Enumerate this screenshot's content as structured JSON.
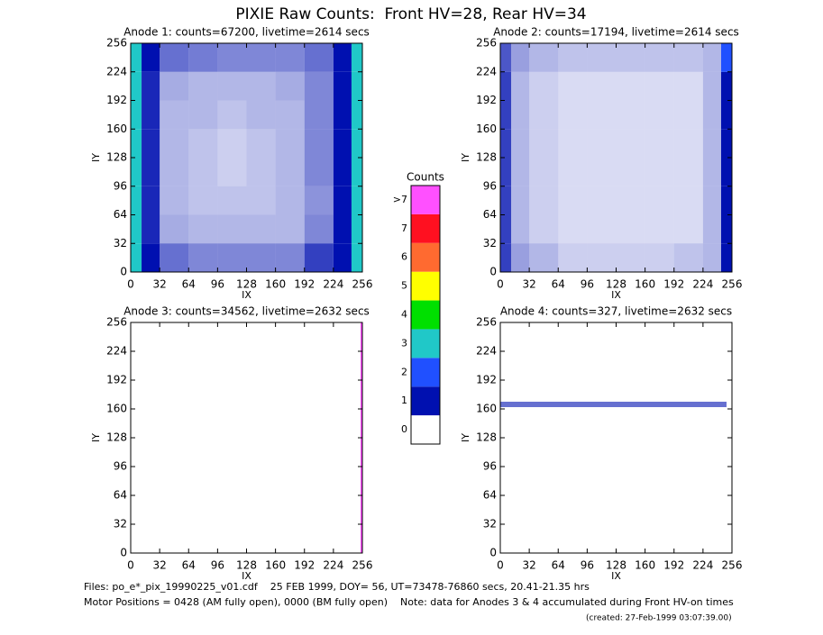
{
  "title": "PIXIE Raw Counts:  Front HV=28, Rear HV=34",
  "colorbar": {
    "title": "Counts",
    "colors": [
      "#ffffff",
      "#0010b0",
      "#2050ff",
      "#20c8c8",
      "#00e000",
      "#ffff00",
      "#ff6a30",
      "#ff1020",
      "#ff50ff"
    ],
    "ticks": [
      0,
      1,
      2,
      3,
      4,
      5,
      6,
      7,
      {
        "value": 8,
        "label": ">7"
      }
    ]
  },
  "footer": [
    "Files: po_e*_pix_19990225_v01.cdf    25 FEB 1999, DOY= 56, UT=73478-76860 secs, 20.41-21.35 hrs",
    "Motor Positions = 0428 (AM fully open), 0000 (BM fully open)    Note: data for Anodes 3 & 4 accumulated during Front HV-on times",
    "(created: 27-Feb-1999 03:07:39.00)"
  ],
  "chart_data": [
    {
      "type": "heatmap",
      "title": "Anode 1: counts=67200, livetime=2614 secs",
      "xlabel": "IX",
      "ylabel": "IY",
      "xlim": [
        0,
        256
      ],
      "ylim": [
        0,
        256
      ],
      "xticks": [
        0,
        32,
        64,
        96,
        128,
        160,
        192,
        224,
        256
      ],
      "yticks": [
        0,
        32,
        64,
        96,
        128,
        160,
        192,
        224,
        256
      ],
      "x_edges": [
        0,
        12,
        32,
        64,
        96,
        128,
        160,
        192,
        224,
        244,
        256
      ],
      "y_edges": [
        0,
        32,
        64,
        96,
        128,
        160,
        192,
        224,
        256
      ],
      "z": [
        [
          3,
          1,
          0.6,
          0.5,
          0.5,
          0.5,
          0.5,
          0.8,
          1.2,
          3
        ],
        [
          3,
          0.9,
          0.35,
          0.3,
          0.3,
          0.3,
          0.3,
          0.5,
          1.2,
          3
        ],
        [
          3,
          0.9,
          0.3,
          0.25,
          0.25,
          0.25,
          0.3,
          0.45,
          1.2,
          3
        ],
        [
          3,
          0.9,
          0.3,
          0.25,
          0.2,
          0.25,
          0.3,
          0.5,
          1.3,
          3
        ],
        [
          3,
          0.9,
          0.3,
          0.25,
          0.2,
          0.25,
          0.3,
          0.5,
          1.3,
          3
        ],
        [
          3,
          0.9,
          0.3,
          0.3,
          0.25,
          0.3,
          0.3,
          0.5,
          1.2,
          3
        ],
        [
          3,
          0.9,
          0.35,
          0.3,
          0.3,
          0.3,
          0.35,
          0.5,
          1.1,
          3
        ],
        [
          3,
          1,
          0.6,
          0.55,
          0.5,
          0.5,
          0.5,
          0.6,
          1,
          3
        ]
      ]
    },
    {
      "type": "heatmap",
      "title": "Anode 2: counts=17194, livetime=2614 secs",
      "xlabel": "IX",
      "ylabel": "IY",
      "xlim": [
        0,
        256
      ],
      "ylim": [
        0,
        256
      ],
      "xticks": [
        0,
        32,
        64,
        96,
        128,
        160,
        192,
        224,
        256
      ],
      "yticks": [
        0,
        32,
        64,
        96,
        128,
        160,
        192,
        224,
        256
      ],
      "x_edges": [
        0,
        12,
        32,
        64,
        96,
        128,
        160,
        192,
        224,
        244,
        256
      ],
      "y_edges": [
        0,
        32,
        64,
        96,
        128,
        160,
        192,
        224,
        256
      ],
      "z": [
        [
          0.8,
          0.4,
          0.3,
          0.2,
          0.2,
          0.2,
          0.2,
          0.25,
          0.3,
          1.5
        ],
        [
          0.8,
          0.3,
          0.2,
          0.15,
          0.15,
          0.15,
          0.15,
          0.15,
          0.3,
          1.5
        ],
        [
          0.8,
          0.3,
          0.2,
          0.15,
          0.15,
          0.15,
          0.15,
          0.15,
          0.3,
          1.5
        ],
        [
          0.8,
          0.3,
          0.2,
          0.15,
          0.15,
          0.15,
          0.15,
          0.15,
          0.3,
          1.5
        ],
        [
          0.8,
          0.3,
          0.2,
          0.15,
          0.15,
          0.15,
          0.15,
          0.15,
          0.3,
          1.5
        ],
        [
          0.8,
          0.3,
          0.2,
          0.15,
          0.15,
          0.15,
          0.15,
          0.15,
          0.3,
          1.5
        ],
        [
          0.8,
          0.3,
          0.2,
          0.15,
          0.15,
          0.15,
          0.15,
          0.15,
          0.3,
          1.5
        ],
        [
          0.7,
          0.4,
          0.3,
          0.25,
          0.25,
          0.25,
          0.25,
          0.25,
          0.3,
          2
        ]
      ]
    },
    {
      "type": "heatmap",
      "title": "Anode 3: counts=34562, livetime=2632 secs",
      "xlabel": "IX",
      "ylabel": "IY",
      "xlim": [
        0,
        256
      ],
      "ylim": [
        0,
        256
      ],
      "xticks": [
        0,
        32,
        64,
        96,
        128,
        160,
        192,
        224,
        256
      ],
      "yticks": [
        0,
        32,
        64,
        96,
        128,
        160,
        192,
        224,
        256
      ],
      "x_edges": [
        0,
        254,
        256
      ],
      "y_edges": [
        0,
        256
      ],
      "z": [
        [
          0,
          9
        ]
      ]
    },
    {
      "type": "heatmap",
      "title": "Anode 4: counts=327, livetime=2632 secs",
      "xlabel": "IX",
      "ylabel": "IY",
      "xlim": [
        0,
        256
      ],
      "ylim": [
        0,
        256
      ],
      "xticks": [
        0,
        32,
        64,
        96,
        128,
        160,
        192,
        224,
        256
      ],
      "yticks": [
        0,
        32,
        64,
        96,
        128,
        160,
        192,
        224,
        256
      ],
      "x_edges": [
        0,
        250,
        256
      ],
      "y_edges": [
        0,
        162,
        168,
        256
      ],
      "z": [
        [
          0,
          0
        ],
        [
          0.6,
          0
        ],
        [
          0,
          0
        ]
      ]
    }
  ]
}
